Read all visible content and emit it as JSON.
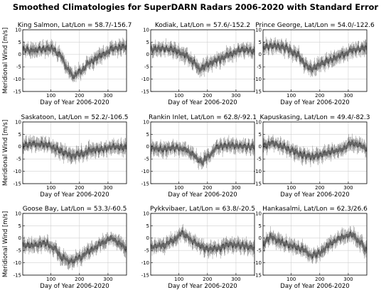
{
  "figure": {
    "title": "Smoothed Climatologies for SuperDARN Radars 2006-2020 with Standard Error"
  },
  "chart_data": [
    {
      "type": "line",
      "title": "King Salmon, Lat/Lon = 58.7/-156.7",
      "xlabel": "Day of Year 2006-2020",
      "ylabel": "Meridional Wind [m/s]",
      "xlim": [
        1,
        365
      ],
      "ylim": [
        -15,
        10
      ],
      "xticks": [
        100,
        200,
        300
      ],
      "yticks": [
        -15,
        -10,
        -5,
        0,
        5,
        10
      ],
      "grid": true,
      "x": [
        1,
        30,
        60,
        100,
        130,
        160,
        180,
        200,
        240,
        280,
        320,
        365
      ],
      "y": [
        2.0,
        1.5,
        2.0,
        2.5,
        0.0,
        -6.0,
        -9.0,
        -7.0,
        -3.0,
        0.0,
        2.5,
        3.0
      ],
      "series": [
        {
          "name": "",
          "color": "#555555"
        }
      ]
    },
    {
      "type": "line",
      "title": "Kodiak, Lat/Lon = 57.6/-152.2",
      "xlabel": "Day of Year 2006-2020",
      "ylabel": "",
      "xlim": [
        1,
        365
      ],
      "ylim": [
        -15,
        10
      ],
      "xticks": [
        100,
        200,
        300
      ],
      "yticks": [
        -15,
        -10,
        -5,
        0,
        5,
        10
      ],
      "grid": true,
      "x": [
        1,
        40,
        80,
        120,
        150,
        175,
        200,
        240,
        280,
        320,
        365
      ],
      "y": [
        2.0,
        2.5,
        2.0,
        0.0,
        -3.0,
        -6.0,
        -4.0,
        -2.0,
        0.0,
        2.0,
        1.5
      ],
      "series": [
        {
          "name": "",
          "color": "#555555"
        }
      ]
    },
    {
      "type": "line",
      "title": "Prince George, Lat/Lon = 54.0/-122.6",
      "xlabel": "Day of Year 2006-2020",
      "ylabel": "",
      "xlim": [
        1,
        365
      ],
      "ylim": [
        -15,
        10
      ],
      "xticks": [
        100,
        200,
        300
      ],
      "yticks": [
        -15,
        -10,
        -5,
        0,
        5,
        10
      ],
      "grid": true,
      "x": [
        1,
        40,
        80,
        120,
        150,
        170,
        200,
        240,
        280,
        320,
        365
      ],
      "y": [
        3.0,
        3.5,
        2.5,
        0.0,
        -4.0,
        -6.0,
        -4.0,
        -2.0,
        0.0,
        2.0,
        2.5
      ],
      "series": [
        {
          "name": "",
          "color": "#555555"
        }
      ]
    },
    {
      "type": "line",
      "title": "Saskatoon, Lat/Lon = 52.2/-106.5",
      "xlabel": "Day of Year 2006-2020",
      "ylabel": "Meridional Wind [m/s]",
      "xlim": [
        1,
        365
      ],
      "ylim": [
        -15,
        10
      ],
      "xticks": [
        100,
        200,
        300
      ],
      "yticks": [
        -15,
        -10,
        -5,
        0,
        5,
        10
      ],
      "grid": true,
      "x": [
        1,
        40,
        80,
        120,
        150,
        170,
        200,
        240,
        280,
        320,
        365
      ],
      "y": [
        0.5,
        1.0,
        1.0,
        -1.0,
        -2.5,
        -3.5,
        -3.0,
        -1.5,
        -1.0,
        0.0,
        -0.5
      ],
      "series": [
        {
          "name": "",
          "color": "#555555"
        }
      ]
    },
    {
      "type": "line",
      "title": "Rankin Inlet, Lat/Lon = 62.8/-92.1",
      "xlabel": "Day of Year 2006-2020",
      "ylabel": "",
      "xlim": [
        1,
        365
      ],
      "ylim": [
        -15,
        10
      ],
      "xticks": [
        100,
        200,
        300
      ],
      "yticks": [
        -15,
        -10,
        -5,
        0,
        5,
        10
      ],
      "grid": true,
      "x": [
        1,
        40,
        80,
        120,
        150,
        170,
        180,
        200,
        240,
        280,
        320,
        365
      ],
      "y": [
        -0.5,
        -1.0,
        -0.5,
        -1.0,
        -3.0,
        -5.5,
        -6.5,
        -4.0,
        0.0,
        0.5,
        0.0,
        0.0
      ],
      "series": [
        {
          "name": "",
          "color": "#555555"
        }
      ]
    },
    {
      "type": "line",
      "title": "Kapuskasing, Lat/Lon = 49.4/-82.3",
      "xlabel": "Day of Year 2006-2020",
      "ylabel": "",
      "xlim": [
        1,
        365
      ],
      "ylim": [
        -15,
        10
      ],
      "xticks": [
        100,
        200,
        300
      ],
      "yticks": [
        -15,
        -10,
        -5,
        0,
        5,
        10
      ],
      "grid": true,
      "x": [
        1,
        30,
        70,
        100,
        140,
        170,
        200,
        240,
        280,
        310,
        340,
        365
      ],
      "y": [
        0.0,
        1.5,
        0.0,
        -1.5,
        -3.5,
        -4.0,
        -3.5,
        -2.0,
        -1.0,
        1.5,
        0.5,
        -1.0
      ],
      "series": [
        {
          "name": "",
          "color": "#555555"
        }
      ]
    },
    {
      "type": "line",
      "title": "Goose Bay, Lat/Lon = 53.3/-60.5",
      "xlabel": "Day of Year 2006-2020",
      "ylabel": "Meridional Wind [m/s]",
      "xlim": [
        1,
        365
      ],
      "ylim": [
        -15,
        10
      ],
      "xticks": [
        100,
        200,
        300
      ],
      "yticks": [
        -15,
        -10,
        -5,
        0,
        5,
        10
      ],
      "grid": true,
      "x": [
        1,
        40,
        80,
        110,
        140,
        170,
        200,
        240,
        280,
        310,
        340,
        365
      ],
      "y": [
        -3.0,
        -3.0,
        -2.0,
        -4.0,
        -8.0,
        -9.5,
        -8.0,
        -5.0,
        -2.0,
        0.0,
        -2.0,
        -4.0
      ],
      "series": [
        {
          "name": "",
          "color": "#555555"
        }
      ]
    },
    {
      "type": "line",
      "title": "Pykkvibaer, Lat/Lon = 63.8/-20.5",
      "xlabel": "Day of Year 2006-2020",
      "ylabel": "",
      "xlim": [
        1,
        365
      ],
      "ylim": [
        -15,
        10
      ],
      "xticks": [
        100,
        200,
        300
      ],
      "yticks": [
        -15,
        -10,
        -5,
        0,
        5,
        10
      ],
      "grid": true,
      "x": [
        1,
        40,
        80,
        110,
        130,
        150,
        170,
        200,
        240,
        280,
        320,
        365
      ],
      "y": [
        -3.5,
        -3.0,
        -1.0,
        2.0,
        0.5,
        -1.5,
        -3.0,
        -4.5,
        -4.0,
        -2.5,
        -3.0,
        -4.0
      ],
      "series": [
        {
          "name": "",
          "color": "#555555"
        }
      ]
    },
    {
      "type": "line",
      "title": "Hankasalmi, Lat/Lon = 62.3/26.6",
      "xlabel": "Day of Year 2006-2020",
      "ylabel": "",
      "xlim": [
        1,
        365
      ],
      "ylim": [
        -15,
        10
      ],
      "xticks": [
        100,
        200,
        300
      ],
      "yticks": [
        -15,
        -10,
        -5,
        0,
        5,
        10
      ],
      "grid": true,
      "x": [
        1,
        30,
        60,
        100,
        140,
        170,
        200,
        240,
        280,
        310,
        340,
        365
      ],
      "y": [
        -2.0,
        0.5,
        -1.5,
        -3.0,
        -4.5,
        -7.0,
        -6.0,
        -2.0,
        0.5,
        1.5,
        -1.5,
        -5.0
      ],
      "series": [
        {
          "name": "",
          "color": "#555555"
        }
      ]
    }
  ]
}
